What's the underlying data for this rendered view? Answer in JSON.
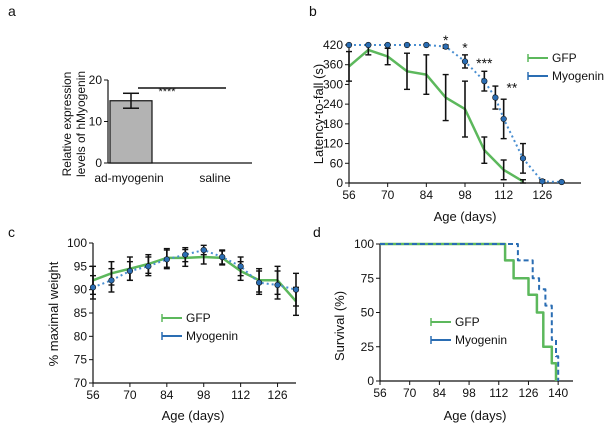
{
  "colors": {
    "gfp": "#5cb85c",
    "myogenin": "#2a6db3",
    "myogenin_dot": "#4a8fd1",
    "bar_fill": "#b3b3b3",
    "axis": "#111111"
  },
  "chart_data": [
    {
      "id": "a",
      "panel_label": "a",
      "type": "bar",
      "ylabel_line1": "Relative expression",
      "ylabel_line2": "levels of hMyogenin",
      "ylim": [
        0,
        20
      ],
      "yticks": [
        0,
        10,
        20
      ],
      "categories": [
        "ad-myogenin",
        "saline"
      ],
      "values": [
        15.0,
        0.0
      ],
      "errors": [
        1.8,
        0.0
      ],
      "annotation": "****"
    },
    {
      "id": "b",
      "panel_label": "b",
      "type": "line",
      "xlabel": "Age (days)",
      "ylabel": "Latency-to-fall (s)",
      "xlim": [
        56,
        140
      ],
      "ylim": [
        0,
        420
      ],
      "xticks": [
        56,
        70,
        84,
        98,
        112,
        126
      ],
      "yticks": [
        0,
        60,
        120,
        180,
        240,
        300,
        360,
        420
      ],
      "legend": [
        "GFP",
        "Myogenin"
      ],
      "series": [
        {
          "name": "GFP",
          "x": [
            56,
            63,
            70,
            77,
            84,
            91,
            98,
            105,
            112,
            119
          ],
          "y": [
            355,
            405,
            385,
            340,
            330,
            260,
            225,
            100,
            40,
            5
          ],
          "err": [
            45,
            15,
            25,
            55,
            60,
            70,
            85,
            40,
            30,
            5
          ]
        },
        {
          "name": "Myogenin",
          "x": [
            56,
            63,
            70,
            77,
            84,
            91,
            98,
            105,
            109,
            112,
            119,
            126,
            133
          ],
          "y": [
            420,
            420,
            420,
            420,
            420,
            415,
            370,
            310,
            260,
            195,
            75,
            5,
            3
          ],
          "err": [
            0,
            0,
            0,
            0,
            0,
            5,
            20,
            30,
            35,
            60,
            45,
            5,
            2
          ]
        }
      ],
      "significance": [
        {
          "x": 91,
          "y": 432,
          "label": "*"
        },
        {
          "x": 98,
          "y": 410,
          "label": "*"
        },
        {
          "x": 105,
          "y": 362,
          "label": "***"
        },
        {
          "x": 115,
          "y": 288,
          "label": "**"
        }
      ]
    },
    {
      "id": "c",
      "panel_label": "c",
      "type": "line",
      "xlabel": "Age (days)",
      "ylabel": "% maximal weight",
      "xlim": [
        56,
        133
      ],
      "ylim": [
        70,
        100
      ],
      "xticks": [
        56,
        70,
        84,
        98,
        112,
        126
      ],
      "yticks": [
        70,
        75,
        80,
        85,
        90,
        95,
        100
      ],
      "legend": [
        "GFP",
        "Myogenin"
      ],
      "series": [
        {
          "name": "GFP",
          "x": [
            56,
            63,
            70,
            77,
            84,
            91,
            98,
            105,
            112,
            119,
            126,
            133
          ],
          "y": [
            92,
            93.5,
            94.5,
            95.5,
            96.8,
            96.8,
            97,
            96.8,
            94,
            92,
            92,
            87.5
          ],
          "err": [
            3,
            2.5,
            2.5,
            2,
            2,
            1.8,
            1.5,
            1.5,
            2,
            2.5,
            3,
            3
          ]
        },
        {
          "name": "Myogenin",
          "x": [
            56,
            63,
            70,
            77,
            84,
            91,
            98,
            105,
            112,
            119,
            126,
            133
          ],
          "y": [
            90.5,
            92,
            94,
            95,
            96.5,
            97.5,
            98.5,
            97,
            95,
            91.5,
            91,
            90
          ],
          "err": [
            2.5,
            2.5,
            2,
            2,
            2,
            1.5,
            1,
            1.5,
            2,
            2.5,
            3,
            3.5
          ]
        }
      ]
    },
    {
      "id": "d",
      "panel_label": "d",
      "type": "line",
      "xlabel": "Age (days)",
      "ylabel": "Survival (%)",
      "xlim": [
        56,
        147
      ],
      "ylim": [
        0,
        100
      ],
      "xticks": [
        56,
        70,
        84,
        98,
        112,
        126,
        140
      ],
      "yticks": [
        0,
        25,
        50,
        75,
        100
      ],
      "legend": [
        "GFP",
        "Myogenin"
      ],
      "series": [
        {
          "name": "GFP",
          "x": [
            56,
            115,
            115,
            119,
            119,
            126,
            126,
            130,
            130,
            133,
            133,
            135,
            135,
            137,
            137,
            139,
            139
          ],
          "y": [
            100,
            100,
            88,
            88,
            75,
            75,
            63,
            63,
            50,
            50,
            25,
            25,
            25,
            25,
            13,
            13,
            0
          ]
        },
        {
          "name": "Myogenin",
          "x": [
            56,
            121,
            121,
            128,
            128,
            131,
            131,
            134,
            134,
            137,
            137,
            139,
            139,
            140,
            140
          ],
          "y": [
            100,
            100,
            88,
            88,
            75,
            75,
            67,
            67,
            55,
            55,
            30,
            30,
            18,
            18,
            0
          ]
        }
      ]
    }
  ]
}
